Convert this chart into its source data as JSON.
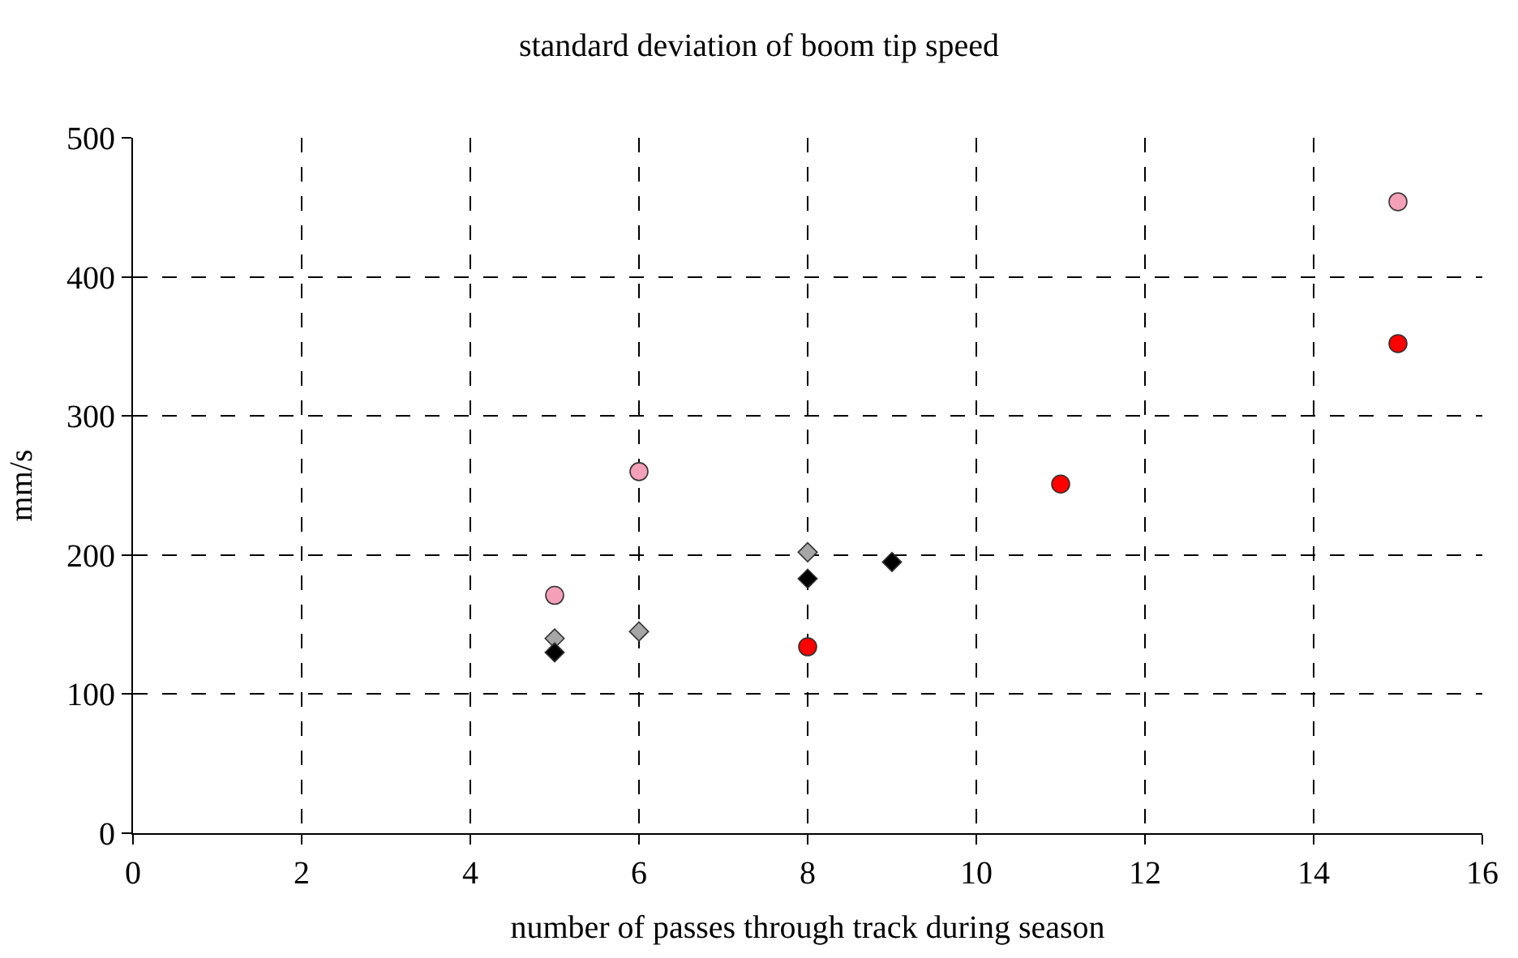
{
  "chart_data": {
    "type": "scatter",
    "title": "standard deviation of boom tip speed",
    "xlabel": "number of passes through track during season",
    "ylabel": "mm/s",
    "xlim": [
      0,
      16
    ],
    "xticks": [
      0,
      2,
      4,
      6,
      8,
      10,
      12,
      14,
      16
    ],
    "ylim": [
      0,
      500
    ],
    "yticks": [
      0,
      100,
      200,
      300,
      400,
      500
    ],
    "grid": true,
    "series": [
      {
        "color": "#f4a0b8",
        "marker": "circle",
        "x": [
          5,
          6,
          15
        ],
        "values": [
          171,
          260,
          454
        ]
      },
      {
        "color": "#ff0000",
        "marker": "circle",
        "x": [
          8,
          11,
          15
        ],
        "values": [
          134,
          251,
          352
        ]
      },
      {
        "color": "#a6a6a6",
        "marker": "diamond",
        "x": [
          5,
          6,
          8
        ],
        "values": [
          140,
          145,
          202
        ]
      },
      {
        "color": "#000000",
        "marker": "diamond",
        "x": [
          5,
          8,
          9
        ],
        "values": [
          130,
          183,
          195
        ]
      }
    ]
  }
}
